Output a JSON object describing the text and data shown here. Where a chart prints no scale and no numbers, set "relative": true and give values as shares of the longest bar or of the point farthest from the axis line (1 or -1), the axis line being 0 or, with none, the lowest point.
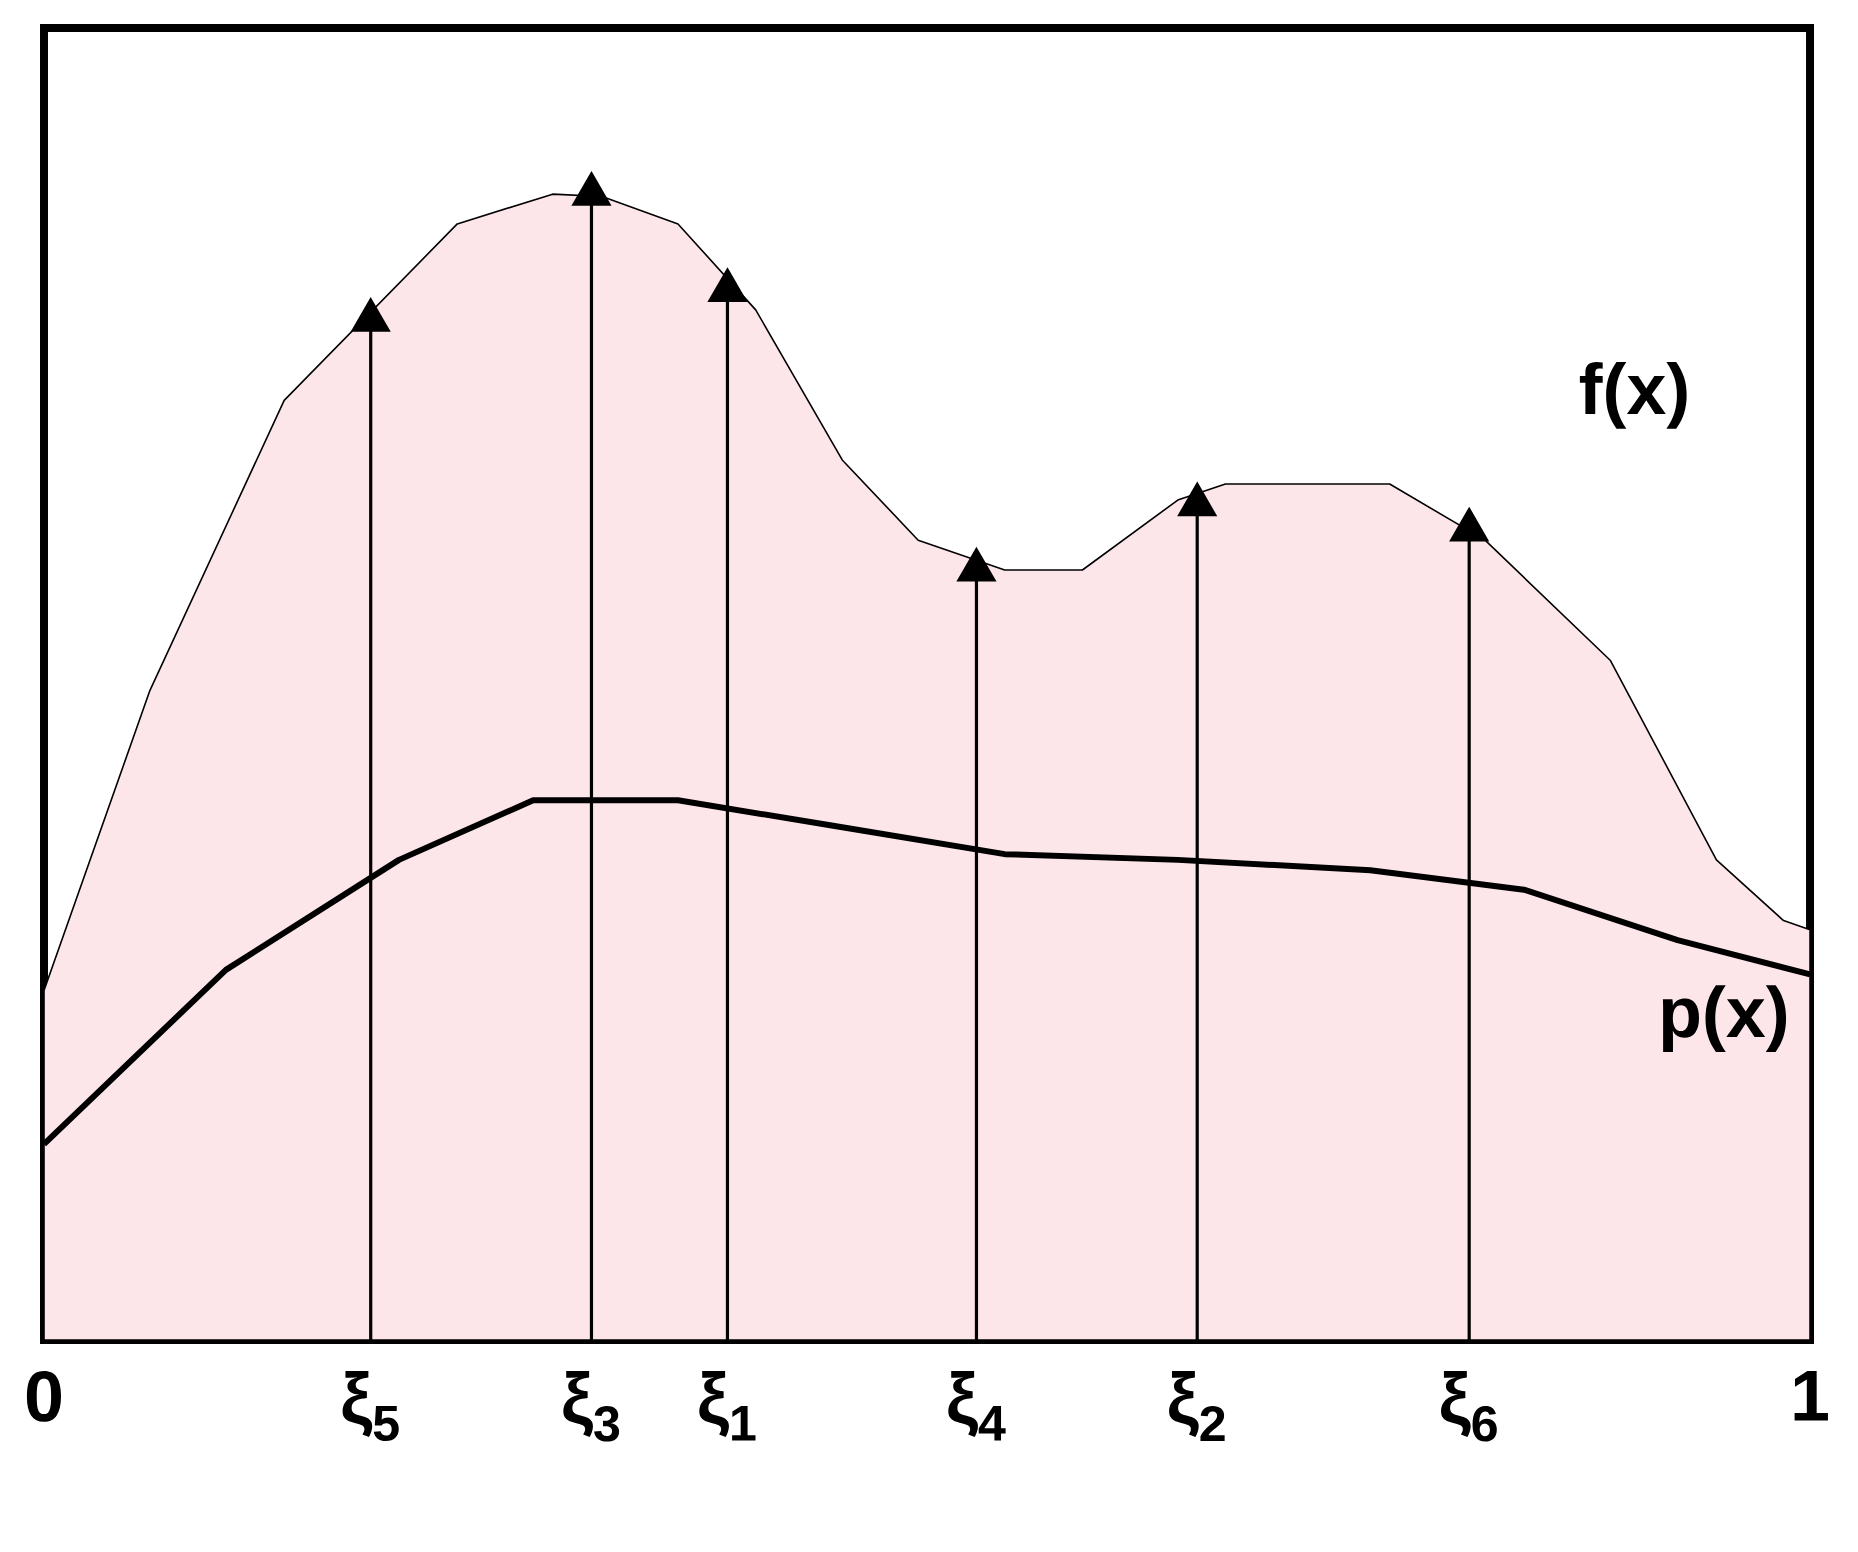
{
  "chart_data": {
    "type": "area",
    "relative": true,
    "xlim": [
      0,
      1
    ],
    "xticks": [
      0,
      1
    ],
    "series": [
      {
        "name": "f(x)",
        "color": "#fde6ea",
        "x": [
          0,
          0.06,
          0.136,
          0.185,
          0.234,
          0.288,
          0.316,
          0.359,
          0.403,
          0.452,
          0.495,
          0.544,
          0.588,
          0.642,
          0.669,
          0.762,
          0.816,
          0.887,
          0.947,
          0.985,
          1
        ],
        "values": [
          0.305,
          0.567,
          0.82,
          null,
          0.974,
          1,
          0.998,
          0.974,
          0.899,
          0.768,
          0.698,
          0.672,
          0.672,
          0.733,
          0.747,
          0.747,
          0.698,
          0.593,
          0.419,
          0.366,
          0.358
        ]
      },
      {
        "name": "p(x)",
        "type": "line",
        "color": "#000000",
        "x": [
          0,
          0.103,
          0.201,
          0.277,
          0.359,
          0.446,
          0.544,
          0.642,
          0.751,
          0.838,
          0.925,
          1
        ],
        "values": [
          0.171,
          0.323,
          0.419,
          0.471,
          0.471,
          0.449,
          0.424,
          0.419,
          0.41,
          0.393,
          0.349,
          0.319
        ]
      },
      {
        "type": "lollipop",
        "color": "#000000",
        "marker": "triangle",
        "x": [
          0.185,
          0.31,
          0.387,
          0.528,
          0.653,
          0.807
        ],
        "values": [
          0.89,
          1,
          0.916,
          0.672,
          0.729,
          0.707
        ]
      }
    ],
    "annotations": [
      {
        "text": "ξ$_{5}$",
        "x": 0.185,
        "y": 0
      },
      {
        "text": "ξ$_{3}$",
        "x": 0.31,
        "y": 0
      },
      {
        "text": "ξ$_{1}$",
        "x": 0.387,
        "y": 0
      },
      {
        "text": "ξ$_{4}$",
        "x": 0.528,
        "y": 0
      },
      {
        "text": "ξ$_{2}$",
        "x": 0.653,
        "y": 0
      },
      {
        "text": "ξ$_{6}$",
        "x": 0.807,
        "y": 0
      }
    ]
  }
}
